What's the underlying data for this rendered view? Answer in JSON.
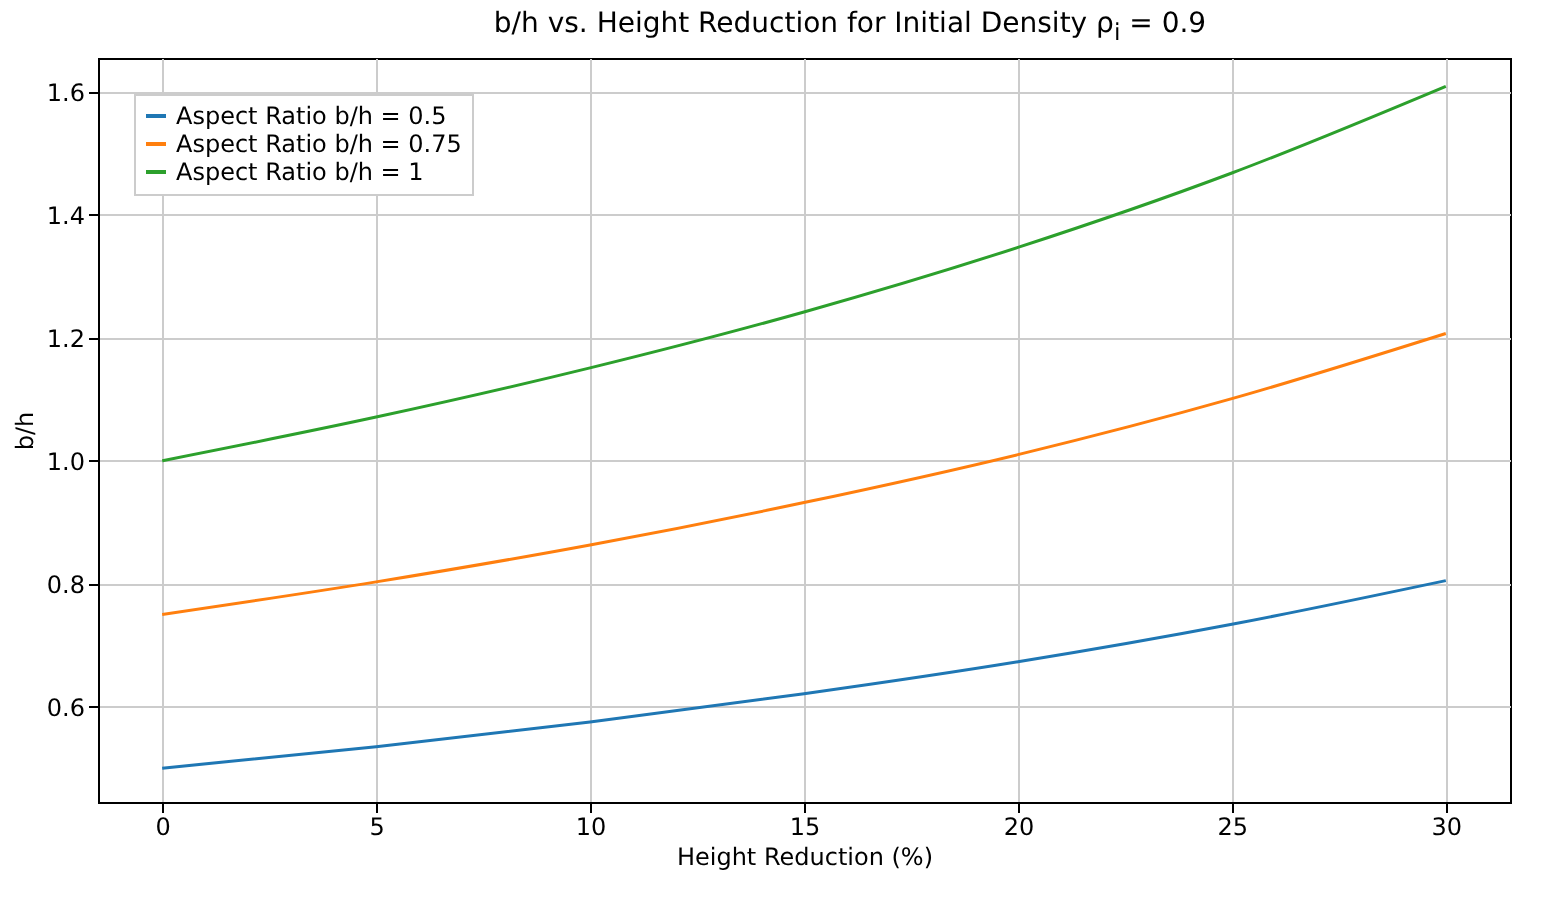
{
  "chart_data": {
    "type": "line",
    "title": "b/h vs. Height Reduction for Initial Density ρ$_{i}$ = 0.9",
    "xlabel": "Height Reduction (%)",
    "ylabel": "b/h",
    "x": [
      0,
      5,
      10,
      15,
      20,
      25,
      30
    ],
    "series": [
      {
        "name": "Aspect Ratio b/h = 0.5",
        "color": "#1f77b4",
        "values": [
          0.5,
          0.535,
          0.575,
          0.621,
          0.673,
          0.734,
          0.805
        ]
      },
      {
        "name": "Aspect Ratio b/h = 0.75",
        "color": "#ff7f0e",
        "values": [
          0.75,
          0.803,
          0.863,
          0.932,
          1.01,
          1.101,
          1.207
        ]
      },
      {
        "name": "Aspect Ratio b/h = 1",
        "color": "#2ca02c",
        "values": [
          1,
          1.071,
          1.151,
          1.242,
          1.347,
          1.468,
          1.609
        ]
      }
    ],
    "xlim": [
      -1.5,
      31.5
    ],
    "xticks": [
      0,
      5,
      10,
      15,
      20,
      25,
      30
    ],
    "ylim": [
      0.445,
      1.655
    ],
    "yticks": [
      0.6,
      0.8,
      {
        "value": 1,
        "label": "1.0"
      },
      1.2,
      1.4,
      1.6
    ],
    "grid": true,
    "legend": "top left",
    "marker": "none",
    "line_style": "solid"
  }
}
